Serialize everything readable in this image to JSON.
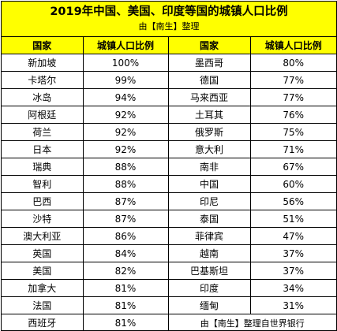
{
  "title": "2019年中国、美国、印度等国的城镇人口比例",
  "subtitle": "由【南生】整理",
  "headers": [
    "国家",
    "城镇人口比例",
    "国家",
    "城镇人口比例"
  ],
  "rows": [
    [
      "新加坡",
      "100%",
      "墨西哥",
      "80%"
    ],
    [
      "卡塔尔",
      "99%",
      "德国",
      "77%"
    ],
    [
      "冰岛",
      "94%",
      "马来西亚",
      "77%"
    ],
    [
      "阿根廷",
      "92%",
      "土耳其",
      "76%"
    ],
    [
      "荷兰",
      "92%",
      "俄罗斯",
      "75%"
    ],
    [
      "日本",
      "92%",
      "意大利",
      "71%"
    ],
    [
      "瑞典",
      "88%",
      "南非",
      "67%"
    ],
    [
      "智利",
      "88%",
      "中国",
      "60%"
    ],
    [
      "巴西",
      "87%",
      "印尼",
      "56%"
    ],
    [
      "沙特",
      "87%",
      "泰国",
      "51%"
    ],
    [
      "澳大利亚",
      "86%",
      "菲律宾",
      "47%"
    ],
    [
      "英国",
      "84%",
      "越南",
      "37%"
    ],
    [
      "美国",
      "82%",
      "巴基斯坦",
      "37%"
    ],
    [
      "加拿大",
      "81%",
      "印度",
      "34%"
    ],
    [
      "法国",
      "81%",
      "缅甸",
      "31%"
    ],
    [
      "西班牙",
      "81%"
    ]
  ],
  "source_note": "由【南生】整理自世界银行",
  "colors": {
    "header_bg": "#FFFF00",
    "border": "#000000",
    "body_bg": "#FFFFFF"
  }
}
